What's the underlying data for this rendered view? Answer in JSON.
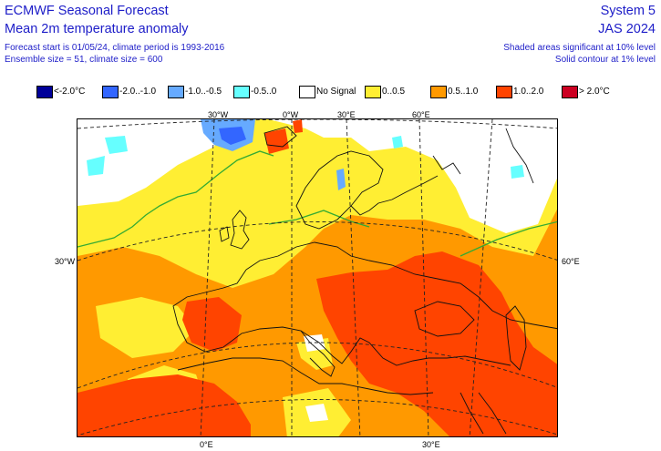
{
  "header": {
    "title": "ECMWF Seasonal Forecast",
    "subtitle": "Mean 2m temperature anomaly",
    "line3": "Forecast start is 01/05/24, climate period is 1993-2016",
    "line4": "Ensemble size = 51, climate size = 600",
    "system": "System 5",
    "period": "JAS 2024",
    "note1": "Shaded areas significant at 10% level",
    "note2": "Solid contour at 1% level"
  },
  "legend": [
    {
      "label": "<-2.0°C",
      "color": "#000099"
    },
    {
      "label": "-2.0..-1.0",
      "color": "#3366ff"
    },
    {
      "label": "-1.0..-0.5",
      "color": "#66aaff"
    },
    {
      "label": "-0.5..0",
      "color": "#66ffff"
    },
    {
      "label": "No Signal",
      "color": "#ffffff"
    },
    {
      "label": "0..0.5",
      "color": "#ffee33"
    },
    {
      "label": "0.5..1.0",
      "color": "#ff9900"
    },
    {
      "label": "1.0..2.0",
      "color": "#ff4400"
    },
    {
      "label": "> 2.0°C",
      "color": "#cc0022"
    }
  ],
  "axes": {
    "top": [
      "30°W",
      "0°W",
      "30°E",
      "60°E"
    ],
    "left": "30°W",
    "right": "60°E",
    "bottom": [
      "0°E",
      "30°E"
    ]
  },
  "colors": {
    "header_text": "#1d1dc8",
    "coast": "#111111",
    "significance_contour": "#33aa33",
    "gridline": "#222222"
  }
}
